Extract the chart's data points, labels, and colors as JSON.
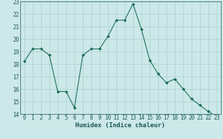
{
  "x": [
    0,
    1,
    2,
    3,
    4,
    5,
    6,
    7,
    8,
    9,
    10,
    11,
    12,
    13,
    14,
    15,
    16,
    17,
    18,
    19,
    20,
    21,
    22,
    23
  ],
  "y": [
    18.2,
    19.2,
    19.2,
    18.7,
    15.8,
    15.8,
    14.5,
    18.7,
    19.2,
    19.2,
    20.2,
    21.5,
    21.5,
    22.8,
    20.8,
    18.3,
    17.2,
    16.5,
    16.8,
    16.0,
    15.2,
    14.7,
    14.2,
    13.8
  ],
  "xlabel": "Humidex (Indice chaleur)",
  "ylim": [
    14,
    23
  ],
  "xlim": [
    -0.5,
    23.5
  ],
  "yticks": [
    14,
    15,
    16,
    17,
    18,
    19,
    20,
    21,
    22,
    23
  ],
  "xticks": [
    0,
    1,
    2,
    3,
    4,
    5,
    6,
    7,
    8,
    9,
    10,
    11,
    12,
    13,
    14,
    15,
    16,
    17,
    18,
    19,
    20,
    21,
    22,
    23
  ],
  "line_color": "#1a6b5a",
  "marker_color": "#1a6b5a",
  "bg_color": "#cce8e8",
  "grid_color": "#aacfcf",
  "text_color": "#1a5555",
  "tick_fontsize": 5.5,
  "xlabel_fontsize": 6.5
}
